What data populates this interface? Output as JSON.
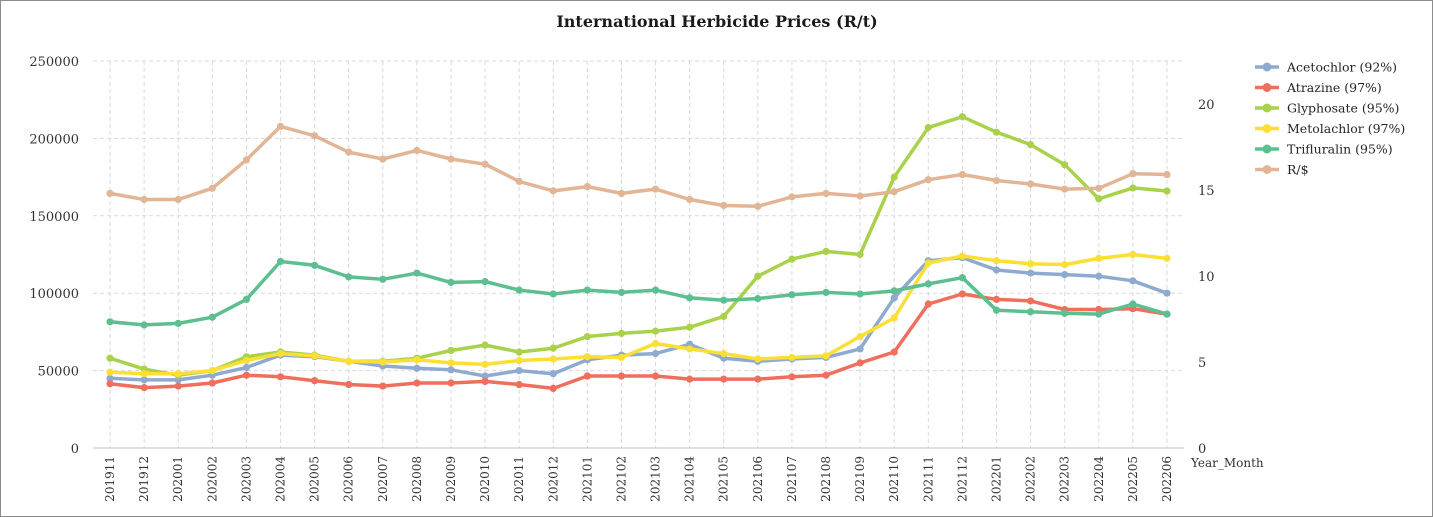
{
  "chart_data": {
    "type": "line",
    "title": "International Herbicide Prices (R/t)",
    "xlabel": "Year_Month",
    "ylabel": "",
    "ylim": [
      0,
      250000
    ],
    "y2lim": [
      0,
      22.5
    ],
    "y_ticks": [
      "0",
      "50000",
      "100000",
      "150000",
      "200000",
      "250000"
    ],
    "y2_ticks": [
      "0",
      "5",
      "10",
      "15",
      "20"
    ],
    "grid": true,
    "legend_position": "right",
    "categories": [
      "201911",
      "201912",
      "202001",
      "202002",
      "202003",
      "202004",
      "202005",
      "202006",
      "202007",
      "202008",
      "202009",
      "202010",
      "202011",
      "202012",
      "202101",
      "202102",
      "202103",
      "202104",
      "202105",
      "202106",
      "202107",
      "202108",
      "202109",
      "202110",
      "202111",
      "202112",
      "202201",
      "202202",
      "202203",
      "202204",
      "202205",
      "202206"
    ],
    "series": [
      {
        "name": "Acetochlor (92%)",
        "axis": "left",
        "color": "#8eaad0",
        "values": [
          45000,
          44000,
          44000,
          47000,
          52000,
          60000,
          59000,
          56000,
          53000,
          51500,
          50500,
          46500,
          50000,
          48000,
          57000,
          60000,
          61000,
          67000,
          58000,
          56000,
          57500,
          58500,
          64000,
          97000,
          121000,
          123000,
          115000,
          113000,
          112000,
          111000,
          108000,
          100000
        ]
      },
      {
        "name": "Atrazine (97%)",
        "axis": "left",
        "color": "#ef6f5e",
        "values": [
          41500,
          39000,
          40000,
          42000,
          47000,
          46000,
          43500,
          41000,
          40000,
          42000,
          42000,
          43000,
          41000,
          38500,
          46500,
          46500,
          46500,
          44500,
          44500,
          44500,
          46000,
          47000,
          55000,
          62000,
          93000,
          99500,
          96000,
          95000,
          89500,
          89500,
          90000,
          86500
        ]
      },
      {
        "name": "Glyphosate (95%)",
        "axis": "left",
        "color": "#a9d14c",
        "values": [
          58000,
          51000,
          47000,
          50000,
          59000,
          62000,
          60000,
          56000,
          56000,
          58000,
          63000,
          66500,
          62000,
          64500,
          72000,
          74000,
          75500,
          78000,
          85000,
          111000,
          122000,
          127000,
          125000,
          175000,
          207000,
          214000,
          204000,
          196000,
          183000,
          161000,
          168000,
          166000
        ]
      },
      {
        "name": "Metolachlor (97%)",
        "axis": "left",
        "color": "#fbdf35",
        "values": [
          49000,
          48000,
          48000,
          50000,
          56500,
          61000,
          59500,
          56000,
          55500,
          57000,
          55000,
          54000,
          56500,
          57500,
          59000,
          58500,
          67500,
          64000,
          61000,
          57500,
          58500,
          59500,
          72000,
          84000,
          119500,
          124000,
          121000,
          119000,
          118500,
          122500,
          125000,
          122500
        ]
      },
      {
        "name": "Trifluralin (95%)",
        "axis": "left",
        "color": "#5dbf8f",
        "values": [
          81500,
          79500,
          80500,
          84500,
          96000,
          120500,
          118000,
          110500,
          109000,
          113000,
          107000,
          107500,
          102000,
          99500,
          102000,
          100500,
          102000,
          97000,
          95500,
          96500,
          99000,
          100500,
          99500,
          101500,
          106000,
          110000,
          89000,
          88000,
          87000,
          86500,
          93000,
          86500
        ]
      },
      {
        "name": "R/$",
        "axis": "right",
        "color": "#e1b595",
        "values": [
          14.8,
          14.45,
          14.45,
          15.1,
          16.75,
          18.7,
          18.15,
          17.2,
          16.8,
          17.3,
          16.8,
          16.5,
          15.5,
          14.95,
          15.2,
          14.8,
          15.05,
          14.45,
          14.1,
          14.05,
          14.6,
          14.8,
          14.65,
          14.9,
          15.6,
          15.9,
          15.55,
          15.35,
          15.05,
          15.1,
          15.95,
          15.9
        ]
      }
    ]
  }
}
